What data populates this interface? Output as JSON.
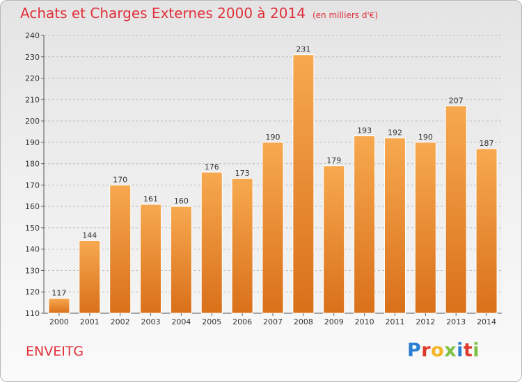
{
  "header": {
    "title": "Achats et Charges Externes 2000 à 2014",
    "unit": "(en milliers d'€)"
  },
  "footer": {
    "commune": "ENVEITG",
    "logo_letters": [
      {
        "ch": "P",
        "color": "#2a7fd4"
      },
      {
        "ch": "r",
        "color": "#e03a2c"
      },
      {
        "ch": "o",
        "color": "#f2b526"
      },
      {
        "ch": "x",
        "color": "#7cc142"
      },
      {
        "ch": "i",
        "color": "#2a7fd4"
      },
      {
        "ch": "t",
        "color": "#e03a2c"
      },
      {
        "ch": "i",
        "color": "#7cc142"
      }
    ]
  },
  "chart_data": {
    "type": "bar",
    "title": "Achats et Charges Externes 2000 à 2014",
    "subtitle": "(en milliers d'€)",
    "xlabel": "",
    "ylabel": "",
    "categories": [
      "2000",
      "2001",
      "2002",
      "2003",
      "2004",
      "2005",
      "2006",
      "2007",
      "2008",
      "2009",
      "2010",
      "2011",
      "2012",
      "2013",
      "2014"
    ],
    "values": [
      117,
      144,
      170,
      161,
      160,
      176,
      173,
      190,
      231,
      179,
      193,
      192,
      190,
      207,
      187
    ],
    "ylim": [
      110,
      240
    ],
    "yticks": [
      110,
      120,
      130,
      140,
      150,
      160,
      170,
      180,
      190,
      200,
      210,
      220,
      230,
      240
    ],
    "grid": true,
    "bar_color": "#f08a2c"
  }
}
